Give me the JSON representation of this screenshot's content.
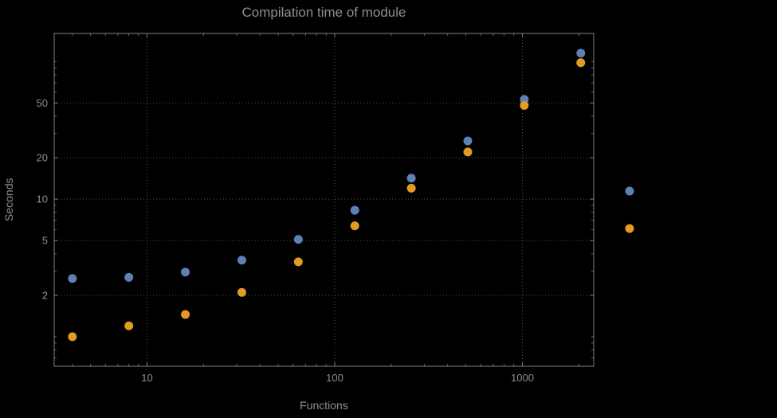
{
  "chart_data": {
    "type": "scatter",
    "title": "Compilation time of module",
    "xlabel": "Functions",
    "ylabel": "Seconds",
    "x_scale": "log",
    "y_scale": "log",
    "xlim": [
      3.2,
      2400
    ],
    "ylim": [
      0.61,
      160
    ],
    "x_ticks": [
      10,
      100,
      1000
    ],
    "y_ticks": [
      2,
      5,
      10,
      20,
      50
    ],
    "grid": "dotted",
    "x": [
      4,
      8,
      16,
      32,
      64,
      128,
      256,
      512,
      1024,
      2048
    ],
    "series": [
      {
        "name": "blue-series",
        "color": "#5e81b5",
        "values": [
          2.65,
          2.7,
          2.95,
          3.6,
          5.1,
          8.3,
          14.2,
          26.5,
          53,
          115
        ]
      },
      {
        "name": "orange-series",
        "color": "#e19c24",
        "values": [
          1.0,
          1.2,
          1.45,
          2.1,
          3.5,
          6.4,
          12,
          22,
          48,
          98
        ]
      }
    ],
    "legend_position": "right",
    "legend_markers": [
      {
        "series": "blue-series",
        "color": "#5e81b5"
      },
      {
        "series": "orange-series",
        "color": "#e19c24"
      }
    ]
  },
  "colors": {
    "background": "#000000",
    "frame": "#7f7f7f",
    "grid": "#585858",
    "text": "#8f8f8f"
  }
}
